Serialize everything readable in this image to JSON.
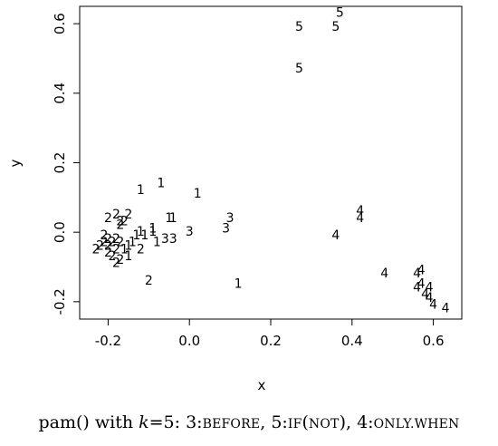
{
  "chart_data": {
    "type": "scatter",
    "title": "",
    "xlabel": "x",
    "ylabel": "y",
    "xlim": [
      -0.27,
      0.67
    ],
    "ylim": [
      -0.25,
      0.65
    ],
    "xticks": [
      -0.2,
      0.0,
      0.2,
      0.4,
      0.6
    ],
    "yticks": [
      -0.2,
      0.0,
      0.2,
      0.4,
      0.6
    ],
    "xtick_labels": [
      "-0.2",
      "0.0",
      "0.2",
      "0.4",
      "0.6"
    ],
    "ytick_labels": [
      "-0.2",
      "0.0",
      "0.2",
      "0.4",
      "0.6"
    ],
    "grid": false,
    "points": [
      {
        "x": 0.27,
        "y": 0.59,
        "label": "5"
      },
      {
        "x": 0.37,
        "y": 0.63,
        "label": "5"
      },
      {
        "x": 0.36,
        "y": 0.59,
        "label": "5"
      },
      {
        "x": 0.27,
        "y": 0.47,
        "label": "5"
      },
      {
        "x": 0.42,
        "y": 0.06,
        "label": "4"
      },
      {
        "x": 0.42,
        "y": 0.04,
        "label": "4"
      },
      {
        "x": 0.36,
        "y": -0.01,
        "label": "4"
      },
      {
        "x": 0.48,
        "y": -0.12,
        "label": "4"
      },
      {
        "x": 0.57,
        "y": -0.11,
        "label": "4"
      },
      {
        "x": 0.56,
        "y": -0.12,
        "label": "4"
      },
      {
        "x": 0.57,
        "y": -0.15,
        "label": "4"
      },
      {
        "x": 0.56,
        "y": -0.16,
        "label": "4"
      },
      {
        "x": 0.59,
        "y": -0.16,
        "label": "4"
      },
      {
        "x": 0.58,
        "y": -0.18,
        "label": "4"
      },
      {
        "x": 0.59,
        "y": -0.19,
        "label": "4"
      },
      {
        "x": 0.6,
        "y": -0.21,
        "label": "4"
      },
      {
        "x": 0.63,
        "y": -0.22,
        "label": "4"
      },
      {
        "x": 0.1,
        "y": 0.04,
        "label": "3"
      },
      {
        "x": 0.09,
        "y": 0.01,
        "label": "3"
      },
      {
        "x": 0.0,
        "y": 0.0,
        "label": "3"
      },
      {
        "x": -0.04,
        "y": -0.02,
        "label": "3"
      },
      {
        "x": -0.06,
        "y": -0.02,
        "label": "3"
      },
      {
        "x": -0.12,
        "y": 0.12,
        "label": "1"
      },
      {
        "x": -0.07,
        "y": 0.14,
        "label": "1"
      },
      {
        "x": 0.02,
        "y": 0.11,
        "label": "1"
      },
      {
        "x": -0.05,
        "y": 0.04,
        "label": "1"
      },
      {
        "x": -0.04,
        "y": 0.04,
        "label": "1"
      },
      {
        "x": -0.09,
        "y": 0.01,
        "label": "1"
      },
      {
        "x": -0.09,
        "y": 0.0,
        "label": "1"
      },
      {
        "x": -0.12,
        "y": 0.0,
        "label": "1"
      },
      {
        "x": -0.13,
        "y": -0.01,
        "label": "1"
      },
      {
        "x": -0.11,
        "y": -0.01,
        "label": "1"
      },
      {
        "x": -0.08,
        "y": -0.03,
        "label": "1"
      },
      {
        "x": -0.14,
        "y": -0.03,
        "label": "1"
      },
      {
        "x": -0.15,
        "y": -0.04,
        "label": "1"
      },
      {
        "x": -0.16,
        "y": -0.05,
        "label": "1"
      },
      {
        "x": -0.15,
        "y": -0.07,
        "label": "1"
      },
      {
        "x": 0.12,
        "y": -0.15,
        "label": "1"
      },
      {
        "x": -0.18,
        "y": 0.05,
        "label": "2"
      },
      {
        "x": -0.15,
        "y": 0.05,
        "label": "2"
      },
      {
        "x": -0.2,
        "y": 0.04,
        "label": "2"
      },
      {
        "x": -0.17,
        "y": 0.03,
        "label": "2"
      },
      {
        "x": -0.16,
        "y": 0.03,
        "label": "2"
      },
      {
        "x": -0.17,
        "y": 0.02,
        "label": "2"
      },
      {
        "x": -0.21,
        "y": -0.01,
        "label": "2"
      },
      {
        "x": -0.2,
        "y": -0.02,
        "label": "2"
      },
      {
        "x": -0.18,
        "y": -0.02,
        "label": "2"
      },
      {
        "x": -0.21,
        "y": -0.03,
        "label": "2"
      },
      {
        "x": -0.19,
        "y": -0.03,
        "label": "2"
      },
      {
        "x": -0.17,
        "y": -0.03,
        "label": "2"
      },
      {
        "x": -0.2,
        "y": -0.04,
        "label": "2"
      },
      {
        "x": -0.22,
        "y": -0.04,
        "label": "2"
      },
      {
        "x": -0.18,
        "y": -0.05,
        "label": "2"
      },
      {
        "x": -0.23,
        "y": -0.05,
        "label": "2"
      },
      {
        "x": -0.2,
        "y": -0.06,
        "label": "2"
      },
      {
        "x": -0.19,
        "y": -0.07,
        "label": "2"
      },
      {
        "x": -0.12,
        "y": -0.05,
        "label": "2"
      },
      {
        "x": -0.17,
        "y": -0.08,
        "label": "2"
      },
      {
        "x": -0.18,
        "y": -0.09,
        "label": "2"
      },
      {
        "x": -0.1,
        "y": -0.14,
        "label": "2"
      }
    ]
  },
  "caption": {
    "prefix": "pam() with ",
    "k_symbol": "k",
    "k_value": "=5: 3:",
    "label_3": "BEFORE",
    "sep1": ", 5:",
    "label_5a": "IF",
    "paren_open": "(",
    "label_5b": "NOT",
    "paren_close": ")",
    "sep2": ", 4:",
    "label_4": "ONLY.WHEN"
  }
}
